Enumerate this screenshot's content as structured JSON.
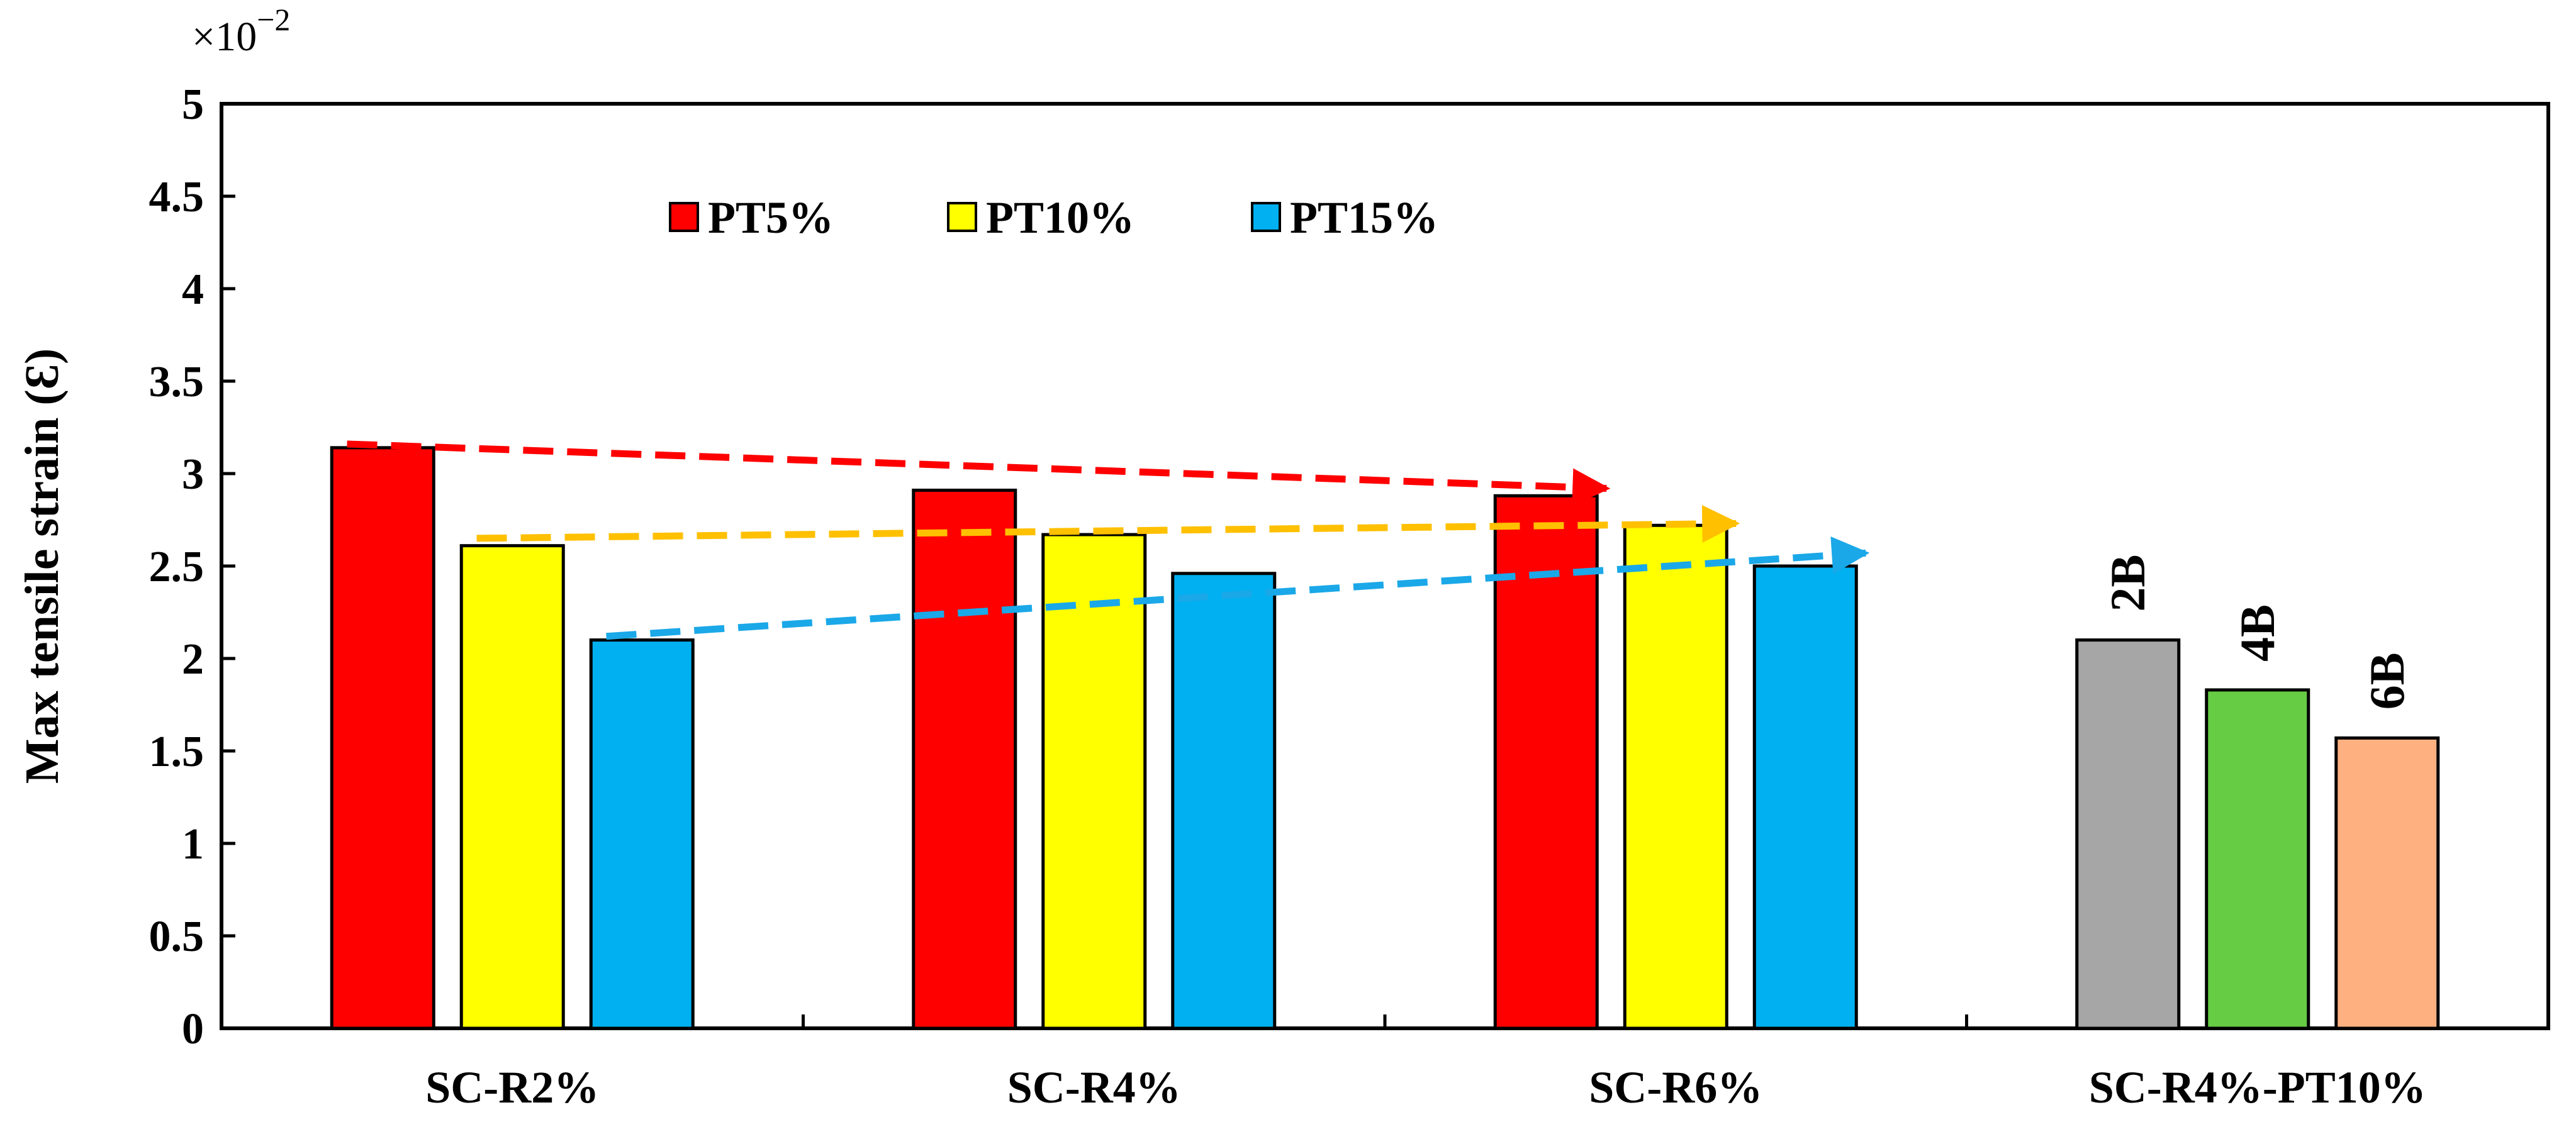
{
  "chart_data": {
    "type": "bar",
    "title": "",
    "xlabel": "",
    "ylabel": "Max tensile strain (Ɛ)",
    "y_multiplier_label": "×10",
    "y_multiplier_exponent": "−2",
    "ylim": [
      0,
      5
    ],
    "yticks": [
      "0",
      "0.5",
      "1",
      "1.5",
      "2",
      "2.5",
      "3",
      "3.5",
      "4",
      "4.5",
      "5"
    ],
    "grid": false,
    "legend_position": "top-left",
    "categories": [
      "SC-R2%",
      "SC-R4%",
      "SC-R6%",
      "SC-R4%-PT10%"
    ],
    "series": [
      {
        "name": "PT5%",
        "color": "#ff0000",
        "values": [
          3.14,
          2.91,
          2.88,
          null
        ]
      },
      {
        "name": "PT10%",
        "color": "#ffff00",
        "values": [
          2.61,
          2.67,
          2.72,
          null
        ]
      },
      {
        "name": "PT15%",
        "color": "#00b0f0",
        "values": [
          2.1,
          2.46,
          2.5,
          null
        ]
      }
    ],
    "group_bars": [
      {
        "category": "SC-R4%-PT10%",
        "label": "2B",
        "value": 2.1,
        "color": "#a6a6a6"
      },
      {
        "category": "SC-R4%-PT10%",
        "label": "4B",
        "value": 1.83,
        "color": "#66cc44"
      },
      {
        "category": "SC-R4%-PT10%",
        "label": "6B",
        "value": 1.57,
        "color": "#ffb081"
      }
    ],
    "trend_arrows": [
      {
        "series": "PT5%",
        "color": "#ff0000",
        "from": {
          "category": "SC-R2%",
          "value": 3.16
        },
        "to": {
          "category": "SC-R6%",
          "value": 2.92
        }
      },
      {
        "series": "PT10%",
        "color": "#ffc000",
        "from": {
          "category": "SC-R2%",
          "value": 2.65
        },
        "to": {
          "category": "SC-R6%",
          "value": 2.73
        }
      },
      {
        "series": "PT15%",
        "color": "#1aa8e8",
        "from": {
          "category": "SC-R2%",
          "value": 2.12
        },
        "to": {
          "category": "SC-R6%",
          "value": 2.57
        }
      }
    ]
  }
}
